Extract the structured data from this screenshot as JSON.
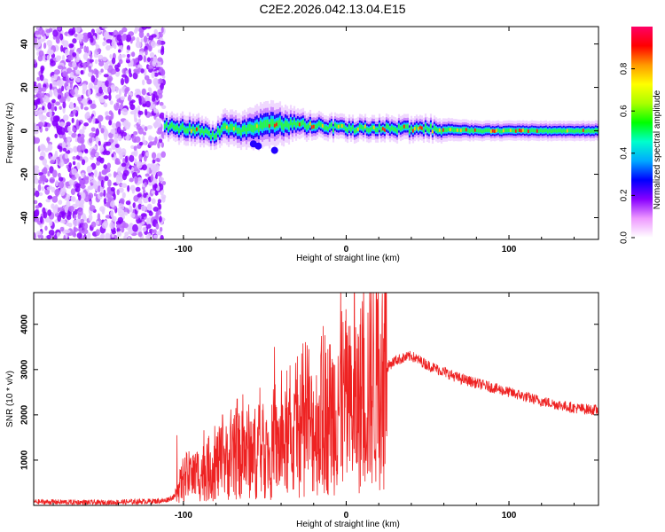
{
  "title": "C2E2.2026.042.13.04.E15",
  "chart_data": [
    {
      "type": "heatmap",
      "xlabel": "Height of straight line (km)",
      "ylabel": "Frequency (Hz)",
      "xlim": [
        -192,
        155
      ],
      "ylim": [
        -50,
        48
      ],
      "xticks": [
        -100,
        0,
        100
      ],
      "yticks": [
        -40,
        -20,
        0,
        20,
        40
      ],
      "colorbar": {
        "label": "Normalized spectral amplitude",
        "range": [
          0,
          1
        ],
        "ticks": [
          0.0,
          0.2,
          0.4,
          0.6,
          0.8
        ],
        "colors": [
          "#ffffff",
          "#ee99ff",
          "#8800ff",
          "#0000ff",
          "#00aaff",
          "#00ffcc",
          "#00ff00",
          "#aaff00",
          "#ffff00",
          "#ff9900",
          "#ff0000",
          "#ff0066"
        ]
      },
      "noise_region": {
        "x_start": -192,
        "x_end": -112,
        "amplitude": 0.2
      },
      "ridge": [
        {
          "x": -112,
          "f": 2,
          "width": 5,
          "amp": 0.35
        },
        {
          "x": -100,
          "f": 1,
          "width": 6,
          "amp": 0.45
        },
        {
          "x": -90,
          "f": 0,
          "width": 6,
          "amp": 0.45
        },
        {
          "x": -82,
          "f": -2,
          "width": 5,
          "amp": 0.4
        },
        {
          "x": -75,
          "f": 2,
          "width": 7,
          "amp": 0.5
        },
        {
          "x": -65,
          "f": 0,
          "width": 7,
          "amp": 0.5
        },
        {
          "x": -55,
          "f": 2,
          "width": 9,
          "amp": 0.55
        },
        {
          "x": -45,
          "f": 3,
          "width": 9,
          "amp": 0.5
        },
        {
          "x": -30,
          "f": 3,
          "width": 6,
          "amp": 0.65
        },
        {
          "x": -15,
          "f": 2,
          "width": 5,
          "amp": 0.75
        },
        {
          "x": 0,
          "f": 1,
          "width": 5,
          "amp": 0.7
        },
        {
          "x": 20,
          "f": 1,
          "width": 5,
          "amp": 0.6
        },
        {
          "x": 50,
          "f": 1,
          "width": 5,
          "amp": 0.55
        },
        {
          "x": 80,
          "f": 0,
          "width": 4,
          "amp": 0.55
        },
        {
          "x": 120,
          "f": 0,
          "width": 4,
          "amp": 0.6
        },
        {
          "x": 155,
          "f": 0,
          "width": 4,
          "amp": 0.6
        }
      ]
    },
    {
      "type": "line",
      "xlabel": "Height of straight line (km)",
      "ylabel": "SNR (10 * v/v)",
      "xlim": [
        -192,
        155
      ],
      "ylim": [
        0,
        4700
      ],
      "xticks": [
        -100,
        0,
        100
      ],
      "yticks": [
        1000,
        2000,
        3000,
        4000
      ],
      "color": "#ee2222",
      "series": [
        {
          "name": "SNR",
          "x": [
            -192,
            -150,
            -112,
            -105,
            -100,
            -90,
            -80,
            -70,
            -60,
            -50,
            -40,
            -30,
            -20,
            -10,
            0,
            5,
            10,
            20,
            30,
            40,
            50,
            60,
            70,
            80,
            100,
            120,
            140,
            155
          ],
          "values": [
            80,
            60,
            100,
            200,
            600,
            700,
            900,
            1000,
            1200,
            1100,
            1300,
            1500,
            1700,
            2000,
            2300,
            2000,
            2500,
            2900,
            3200,
            3300,
            3100,
            2950,
            2800,
            2700,
            2500,
            2300,
            2150,
            2100
          ],
          "spikes": [
            {
              "x": -104,
              "y": 1550
            },
            {
              "x": -76,
              "y": 2000
            },
            {
              "x": -67,
              "y": 2350
            },
            {
              "x": -53,
              "y": 2600
            },
            {
              "x": -44,
              "y": 3500
            },
            {
              "x": -23,
              "y": 3450
            },
            {
              "x": -15,
              "y": 2900
            },
            {
              "x": -5,
              "y": 3300
            },
            {
              "x": 5,
              "y": 4700
            },
            {
              "x": 11,
              "y": 3700
            }
          ]
        }
      ]
    }
  ]
}
